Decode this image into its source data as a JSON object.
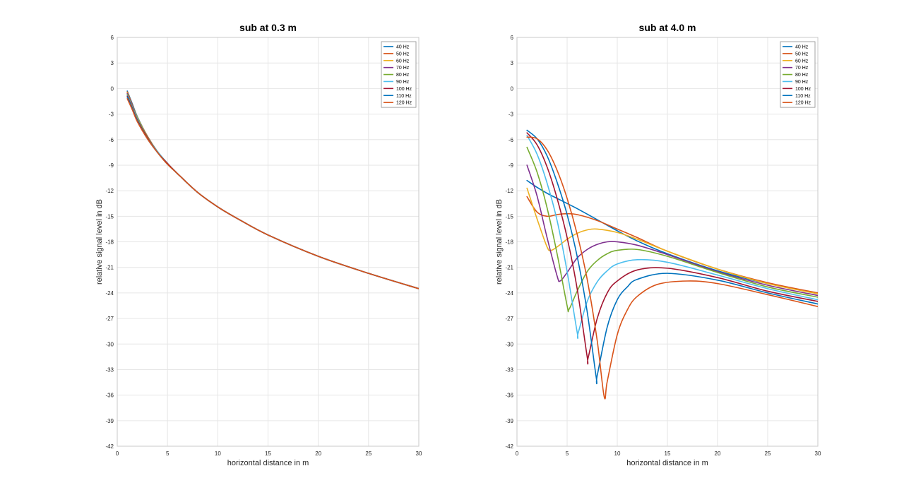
{
  "chart_data": [
    {
      "type": "line",
      "title": "sub at 0.3 m",
      "xlabel": "horizontal distance in m",
      "ylabel": "relative signal level in dB",
      "xlim": [
        0,
        30
      ],
      "ylim": [
        -42,
        6
      ],
      "xticks": [
        0,
        5,
        10,
        15,
        20,
        25,
        30
      ],
      "yticks": [
        6,
        3,
        0,
        -3,
        -6,
        -9,
        -12,
        -15,
        -18,
        -21,
        -24,
        -27,
        -30,
        -33,
        -36,
        -39,
        -42
      ],
      "grid": true,
      "legend_location": "top-right",
      "series": [
        {
          "name": "40 Hz",
          "color": "#0072BD",
          "x": [
            1,
            1.5,
            2,
            3,
            4,
            5,
            6,
            8,
            10,
            12,
            15,
            20,
            25,
            30
          ],
          "y": [
            -0.3,
            -1.8,
            -3.3,
            -5.6,
            -7.4,
            -8.8,
            -10.0,
            -12.2,
            -13.9,
            -15.3,
            -17.2,
            -19.7,
            -21.7,
            -23.5
          ]
        },
        {
          "name": "50 Hz",
          "color": "#D95319",
          "x": [
            1,
            1.5,
            2,
            3,
            4,
            5,
            6,
            8,
            10,
            12,
            15,
            20,
            25,
            30
          ],
          "y": [
            -0.4,
            -1.9,
            -3.4,
            -5.6,
            -7.4,
            -8.8,
            -10.0,
            -12.2,
            -13.9,
            -15.3,
            -17.2,
            -19.7,
            -21.7,
            -23.5
          ]
        },
        {
          "name": "60 Hz",
          "color": "#EDB120",
          "x": [
            1,
            1.5,
            2,
            3,
            4,
            5,
            6,
            8,
            10,
            12,
            15,
            20,
            25,
            30
          ],
          "y": [
            -0.5,
            -2.0,
            -3.4,
            -5.7,
            -7.4,
            -8.8,
            -10.0,
            -12.2,
            -13.9,
            -15.3,
            -17.2,
            -19.7,
            -21.7,
            -23.5
          ]
        },
        {
          "name": "70 Hz",
          "color": "#7E2F8E",
          "x": [
            1,
            1.5,
            2,
            3,
            4,
            5,
            6,
            8,
            10,
            12,
            15,
            20,
            25,
            30
          ],
          "y": [
            -0.6,
            -2.0,
            -3.5,
            -5.7,
            -7.4,
            -8.8,
            -10.0,
            -12.2,
            -13.9,
            -15.3,
            -17.2,
            -19.7,
            -21.7,
            -23.5
          ]
        },
        {
          "name": "80 Hz",
          "color": "#77AC30",
          "x": [
            1,
            1.5,
            2,
            3,
            4,
            5,
            6,
            8,
            10,
            12,
            15,
            20,
            25,
            30
          ],
          "y": [
            -0.7,
            -2.1,
            -3.5,
            -5.7,
            -7.4,
            -8.8,
            -10.0,
            -12.2,
            -13.9,
            -15.3,
            -17.2,
            -19.7,
            -21.7,
            -23.5
          ]
        },
        {
          "name": "90 Hz",
          "color": "#4DBEEE",
          "x": [
            1,
            1.5,
            2,
            3,
            4,
            5,
            6,
            8,
            10,
            12,
            15,
            20,
            25,
            30
          ],
          "y": [
            -0.8,
            -2.2,
            -3.6,
            -5.8,
            -7.4,
            -8.8,
            -10.0,
            -12.2,
            -13.9,
            -15.3,
            -17.2,
            -19.7,
            -21.7,
            -23.5
          ]
        },
        {
          "name": "100 Hz",
          "color": "#A2142F",
          "x": [
            1,
            1.5,
            2,
            3,
            4,
            5,
            6,
            8,
            10,
            12,
            15,
            20,
            25,
            30
          ],
          "y": [
            -0.9,
            -2.3,
            -3.7,
            -5.8,
            -7.5,
            -8.8,
            -10.0,
            -12.2,
            -13.9,
            -15.3,
            -17.2,
            -19.7,
            -21.7,
            -23.5
          ]
        },
        {
          "name": "110 Hz",
          "color": "#0072BD",
          "x": [
            1,
            1.5,
            2,
            3,
            4,
            5,
            6,
            8,
            10,
            12,
            15,
            20,
            25,
            30
          ],
          "y": [
            -1.0,
            -2.4,
            -3.8,
            -5.9,
            -7.5,
            -8.9,
            -10.0,
            -12.2,
            -13.9,
            -15.3,
            -17.2,
            -19.7,
            -21.7,
            -23.5
          ]
        },
        {
          "name": "120 Hz",
          "color": "#D95319",
          "x": [
            1,
            1.5,
            2,
            3,
            4,
            5,
            6,
            8,
            10,
            12,
            15,
            20,
            25,
            30
          ],
          "y": [
            -1.2,
            -2.5,
            -3.9,
            -5.9,
            -7.5,
            -8.9,
            -10.0,
            -12.2,
            -13.9,
            -15.3,
            -17.2,
            -19.7,
            -21.7,
            -23.5
          ]
        }
      ]
    },
    {
      "type": "line",
      "title": "sub at 4.0 m",
      "xlabel": "horizontal distance in m",
      "ylabel": "relative signal level in dB",
      "xlim": [
        0,
        30
      ],
      "ylim": [
        -42,
        6
      ],
      "xticks": [
        0,
        5,
        10,
        15,
        20,
        25,
        30
      ],
      "yticks": [
        6,
        3,
        0,
        -3,
        -6,
        -9,
        -12,
        -15,
        -18,
        -21,
        -24,
        -27,
        -30,
        -33,
        -36,
        -39,
        -42
      ],
      "grid": true,
      "legend_location": "top-right",
      "series": [
        {
          "name": "40 Hz",
          "color": "#0072BD",
          "x": [
            1,
            2,
            3,
            4,
            5,
            6,
            8,
            10,
            12,
            15,
            20,
            25,
            30
          ],
          "y": [
            -10.8,
            -11.6,
            -12.3,
            -12.9,
            -13.5,
            -14.1,
            -15.4,
            -16.7,
            -17.9,
            -19.4,
            -21.4,
            -22.9,
            -24.0
          ]
        },
        {
          "name": "50 Hz",
          "color": "#D95319",
          "x": [
            1,
            2,
            3,
            4,
            5,
            6,
            8,
            10,
            12,
            15,
            20,
            25,
            30
          ],
          "y": [
            -12.7,
            -14.5,
            -15.0,
            -14.8,
            -14.7,
            -14.8,
            -15.5,
            -16.5,
            -17.5,
            -19.1,
            -21.2,
            -22.8,
            -24.0
          ]
        },
        {
          "name": "60 Hz",
          "color": "#EDB120",
          "x": [
            1,
            2,
            3,
            3.4,
            4,
            5,
            6,
            7,
            8,
            10,
            12,
            15,
            20,
            25,
            30
          ],
          "y": [
            -11.7,
            -15.3,
            -18.6,
            -19.0,
            -18.6,
            -17.7,
            -17.0,
            -16.6,
            -16.5,
            -16.9,
            -17.7,
            -19.1,
            -21.2,
            -22.9,
            -24.1
          ]
        },
        {
          "name": "70 Hz",
          "color": "#7E2F8E",
          "x": [
            1,
            2,
            3,
            4,
            4.3,
            5,
            6,
            7,
            8,
            9,
            10,
            12,
            15,
            20,
            25,
            30
          ],
          "y": [
            -9.0,
            -12.6,
            -17.5,
            -22.0,
            -22.6,
            -21.6,
            -19.9,
            -18.9,
            -18.3,
            -18.0,
            -18.0,
            -18.4,
            -19.5,
            -21.5,
            -23.1,
            -24.3
          ]
        },
        {
          "name": "80 Hz",
          "color": "#77AC30",
          "x": [
            1,
            2,
            3,
            4,
            5,
            5.2,
            6,
            7,
            8,
            9,
            10,
            12,
            15,
            20,
            25,
            30
          ],
          "y": [
            -6.9,
            -9.8,
            -14.0,
            -19.4,
            -25.5,
            -25.9,
            -23.8,
            -21.5,
            -20.2,
            -19.4,
            -19.0,
            -18.9,
            -19.7,
            -21.6,
            -23.3,
            -24.5
          ]
        },
        {
          "name": "90 Hz",
          "color": "#4DBEEE",
          "x": [
            1,
            2,
            3,
            4,
            5,
            6,
            6.1,
            7,
            8,
            9,
            10,
            12,
            15,
            20,
            25,
            30
          ],
          "y": [
            -5.5,
            -7.7,
            -11.1,
            -15.5,
            -21.5,
            -28.6,
            -28.7,
            -25.0,
            -22.7,
            -21.4,
            -20.6,
            -20.1,
            -20.4,
            -21.9,
            -23.5,
            -24.8
          ]
        },
        {
          "name": "100 Hz",
          "color": "#A2142F",
          "x": [
            1,
            2,
            3,
            4,
            5,
            6,
            7,
            7.1,
            8,
            9,
            10,
            12,
            15,
            20,
            25,
            30
          ],
          "y": [
            -5.2,
            -6.6,
            -9.2,
            -12.9,
            -17.5,
            -23.5,
            -31.5,
            -31.6,
            -27.0,
            -24.0,
            -22.6,
            -21.3,
            -21.1,
            -22.2,
            -23.8,
            -25.0
          ]
        },
        {
          "name": "110 Hz",
          "color": "#0072BD",
          "x": [
            1,
            2,
            3,
            4,
            5,
            6,
            7,
            7.9,
            8,
            9,
            10,
            11,
            12,
            15,
            20,
            25,
            30
          ],
          "y": [
            -4.9,
            -5.9,
            -7.9,
            -11.0,
            -14.8,
            -19.7,
            -26.2,
            -33.9,
            -33.7,
            -28.0,
            -24.8,
            -23.3,
            -22.4,
            -21.7,
            -22.5,
            -24.0,
            -25.3
          ]
        },
        {
          "name": "120 Hz",
          "color": "#D95319",
          "x": [
            1,
            2,
            3,
            4,
            5,
            6,
            7,
            8,
            8.7,
            9,
            10,
            11,
            12,
            14,
            17,
            20,
            25,
            30
          ],
          "y": [
            -5.7,
            -5.9,
            -7.2,
            -9.6,
            -12.9,
            -17.1,
            -22.4,
            -29.6,
            -36.2,
            -34.4,
            -28.9,
            -26.0,
            -24.4,
            -23.0,
            -22.6,
            -22.9,
            -24.2,
            -25.6
          ]
        }
      ]
    }
  ]
}
